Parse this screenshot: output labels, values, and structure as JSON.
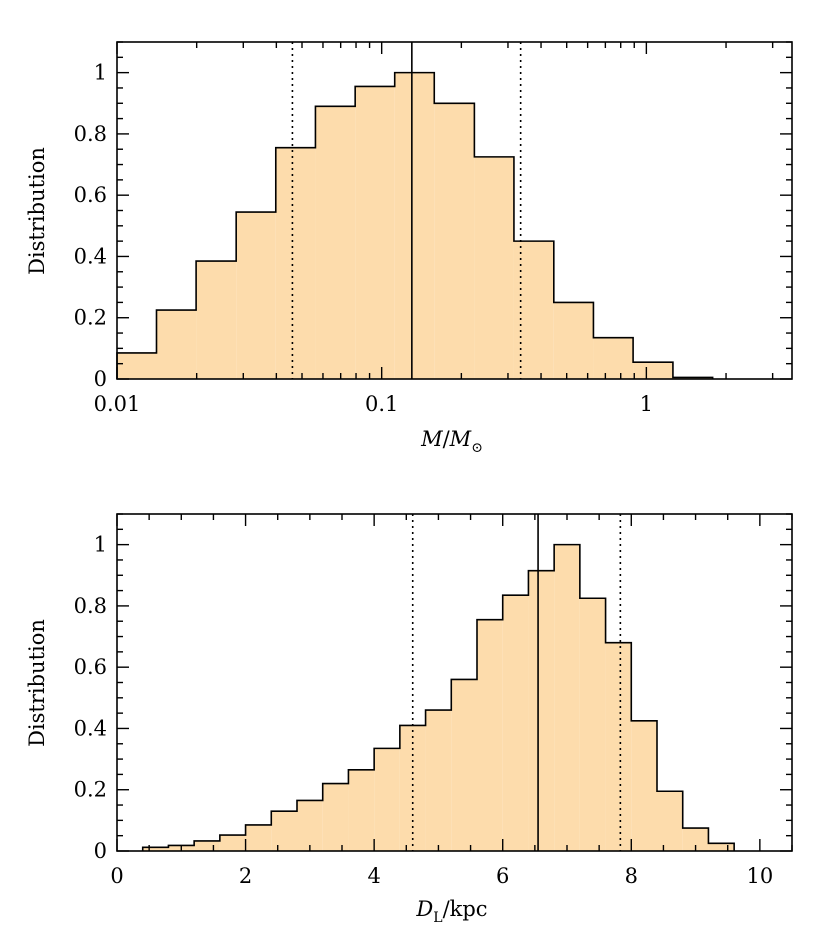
{
  "chart_data": [
    {
      "type": "histogram",
      "xlabel_main": "M",
      "xlabel_sep": "/",
      "xlabel_sub_main": "M",
      "xlabel_sub": "⊙",
      "ylabel": "Distribution",
      "xscale": "log",
      "xlim": [
        0.01,
        3.55
      ],
      "ylim": [
        0,
        1.1
      ],
      "xticks": [
        0.01,
        0.1,
        1
      ],
      "xtick_labels": [
        "0.01",
        "0.1",
        "1"
      ],
      "yticks": [
        0,
        0.2,
        0.4,
        0.6,
        0.8,
        1
      ],
      "ytick_labels": [
        "0",
        "0.2",
        "0.4",
        "0.6",
        "0.8",
        "1"
      ],
      "bin_edges": [
        0.01,
        0.0141,
        0.0199,
        0.0282,
        0.0398,
        0.0562,
        0.0794,
        0.112,
        0.158,
        0.224,
        0.316,
        0.447,
        0.631,
        0.891,
        1.26,
        1.78
      ],
      "values": [
        0.085,
        0.225,
        0.385,
        0.545,
        0.755,
        0.89,
        0.955,
        1.0,
        0.9,
        0.725,
        0.45,
        0.25,
        0.135,
        0.055,
        0.005
      ],
      "median": 0.13,
      "interval": [
        0.046,
        0.335
      ],
      "fill_color": "#fddcac",
      "grid": false
    },
    {
      "type": "histogram",
      "xlabel_main": "D",
      "xlabel_sub": "L",
      "xlabel_unit": "/kpc",
      "ylabel": "Distribution",
      "xscale": "linear",
      "xlim": [
        0,
        10.5
      ],
      "ylim": [
        0,
        1.1
      ],
      "xticks": [
        0,
        2,
        4,
        6,
        8,
        10
      ],
      "xtick_labels": [
        "0",
        "2",
        "4",
        "6",
        "8",
        "10"
      ],
      "yticks": [
        0,
        0.2,
        0.4,
        0.6,
        0.8,
        1
      ],
      "ytick_labels": [
        "0",
        "0.2",
        "0.4",
        "0.6",
        "0.8",
        "1"
      ],
      "bin_edges": [
        0.4,
        0.8,
        1.2,
        1.6,
        2.0,
        2.4,
        2.8,
        3.2,
        3.6,
        4.0,
        4.4,
        4.8,
        5.2,
        5.6,
        6.0,
        6.4,
        6.8,
        7.2,
        7.6,
        8.0,
        8.4,
        8.8,
        9.2,
        9.6
      ],
      "values": [
        0.012,
        0.018,
        0.033,
        0.052,
        0.085,
        0.13,
        0.165,
        0.22,
        0.265,
        0.335,
        0.41,
        0.46,
        0.56,
        0.755,
        0.835,
        0.915,
        1.0,
        0.825,
        0.68,
        0.425,
        0.195,
        0.075,
        0.025
      ],
      "median": 6.55,
      "interval": [
        4.6,
        7.83
      ],
      "fill_color": "#fddcac",
      "grid": false
    }
  ]
}
